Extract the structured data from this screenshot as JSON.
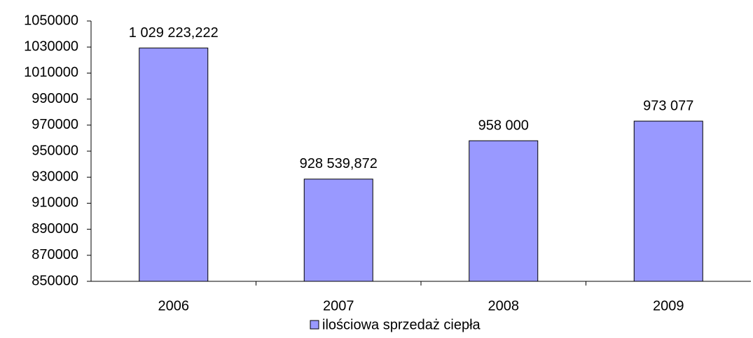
{
  "chart_data": {
    "type": "bar",
    "categories": [
      "2006",
      "2007",
      "2008",
      "2009"
    ],
    "series": [
      {
        "name": "ilościowa sprzedaż ciepła",
        "color": "#9999ff",
        "values": [
          1029223.222,
          928539.872,
          958000,
          973077
        ],
        "value_labels": [
          "1 029 223,222",
          "928 539,872",
          "958 000",
          "973 077"
        ]
      }
    ],
    "ylim": [
      850000,
      1050000
    ],
    "yticks": [
      850000,
      870000,
      890000,
      910000,
      930000,
      950000,
      970000,
      990000,
      1010000,
      1030000,
      1050000
    ],
    "legend": "bottom"
  }
}
